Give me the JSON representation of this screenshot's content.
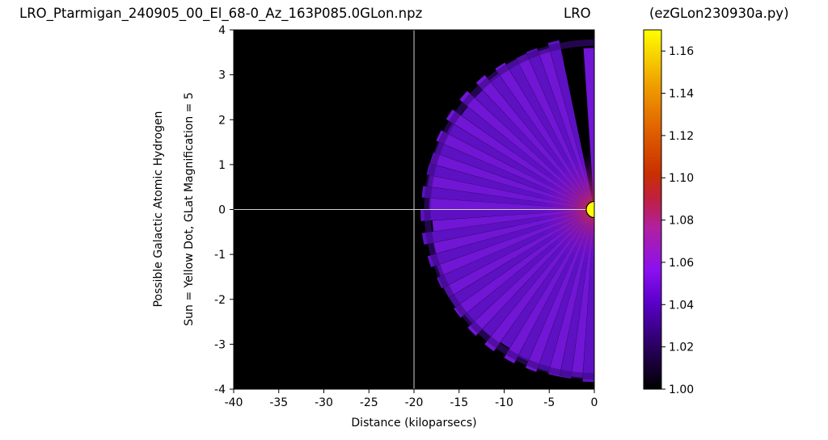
{
  "header": {
    "title_left": "LRO_Ptarmigan_240905_00_El_68-0_Az_163P085.0GLon.npz",
    "title_mid": "LRO",
    "title_right": "(ezGLon230930a.py)"
  },
  "chart_data": {
    "type": "heatmap",
    "xlabel": "Distance (kiloparsecs)",
    "ylabel_line1": "Possible Galactic Atomic Hydrogen",
    "ylabel_line2": "Sun = Yellow Dot, GLat Magnification = 5",
    "xlim": [
      -40,
      0
    ],
    "ylim": [
      -4,
      4
    ],
    "x_ticks": [
      "-40",
      "-35",
      "-30",
      "-25",
      "-20",
      "-15",
      "-10",
      "-5",
      "0"
    ],
    "y_ticks": [
      "4",
      "3",
      "2",
      "1",
      "0",
      "-1",
      "-2",
      "-3",
      "-4"
    ],
    "colorbar": {
      "min": 1.0,
      "max": 1.17,
      "ticks": [
        "1.00",
        "1.02",
        "1.04",
        "1.06",
        "1.08",
        "1.10",
        "1.12",
        "1.14",
        "1.16"
      ],
      "colormap": "gnuplot"
    },
    "reference_lines": {
      "x": -20,
      "y": 0
    },
    "sun_marker": {
      "x": 0,
      "y": 0,
      "color": "#ffff00"
    },
    "emission": {
      "fan_center": [
        0,
        0
      ],
      "outer_radius_kpc": 19.3,
      "inner_radius_kpc": 0.3,
      "typical_value": 1.035,
      "peak_value": 1.08,
      "peak_near_kpc": [
        -2,
        0
      ]
    }
  }
}
